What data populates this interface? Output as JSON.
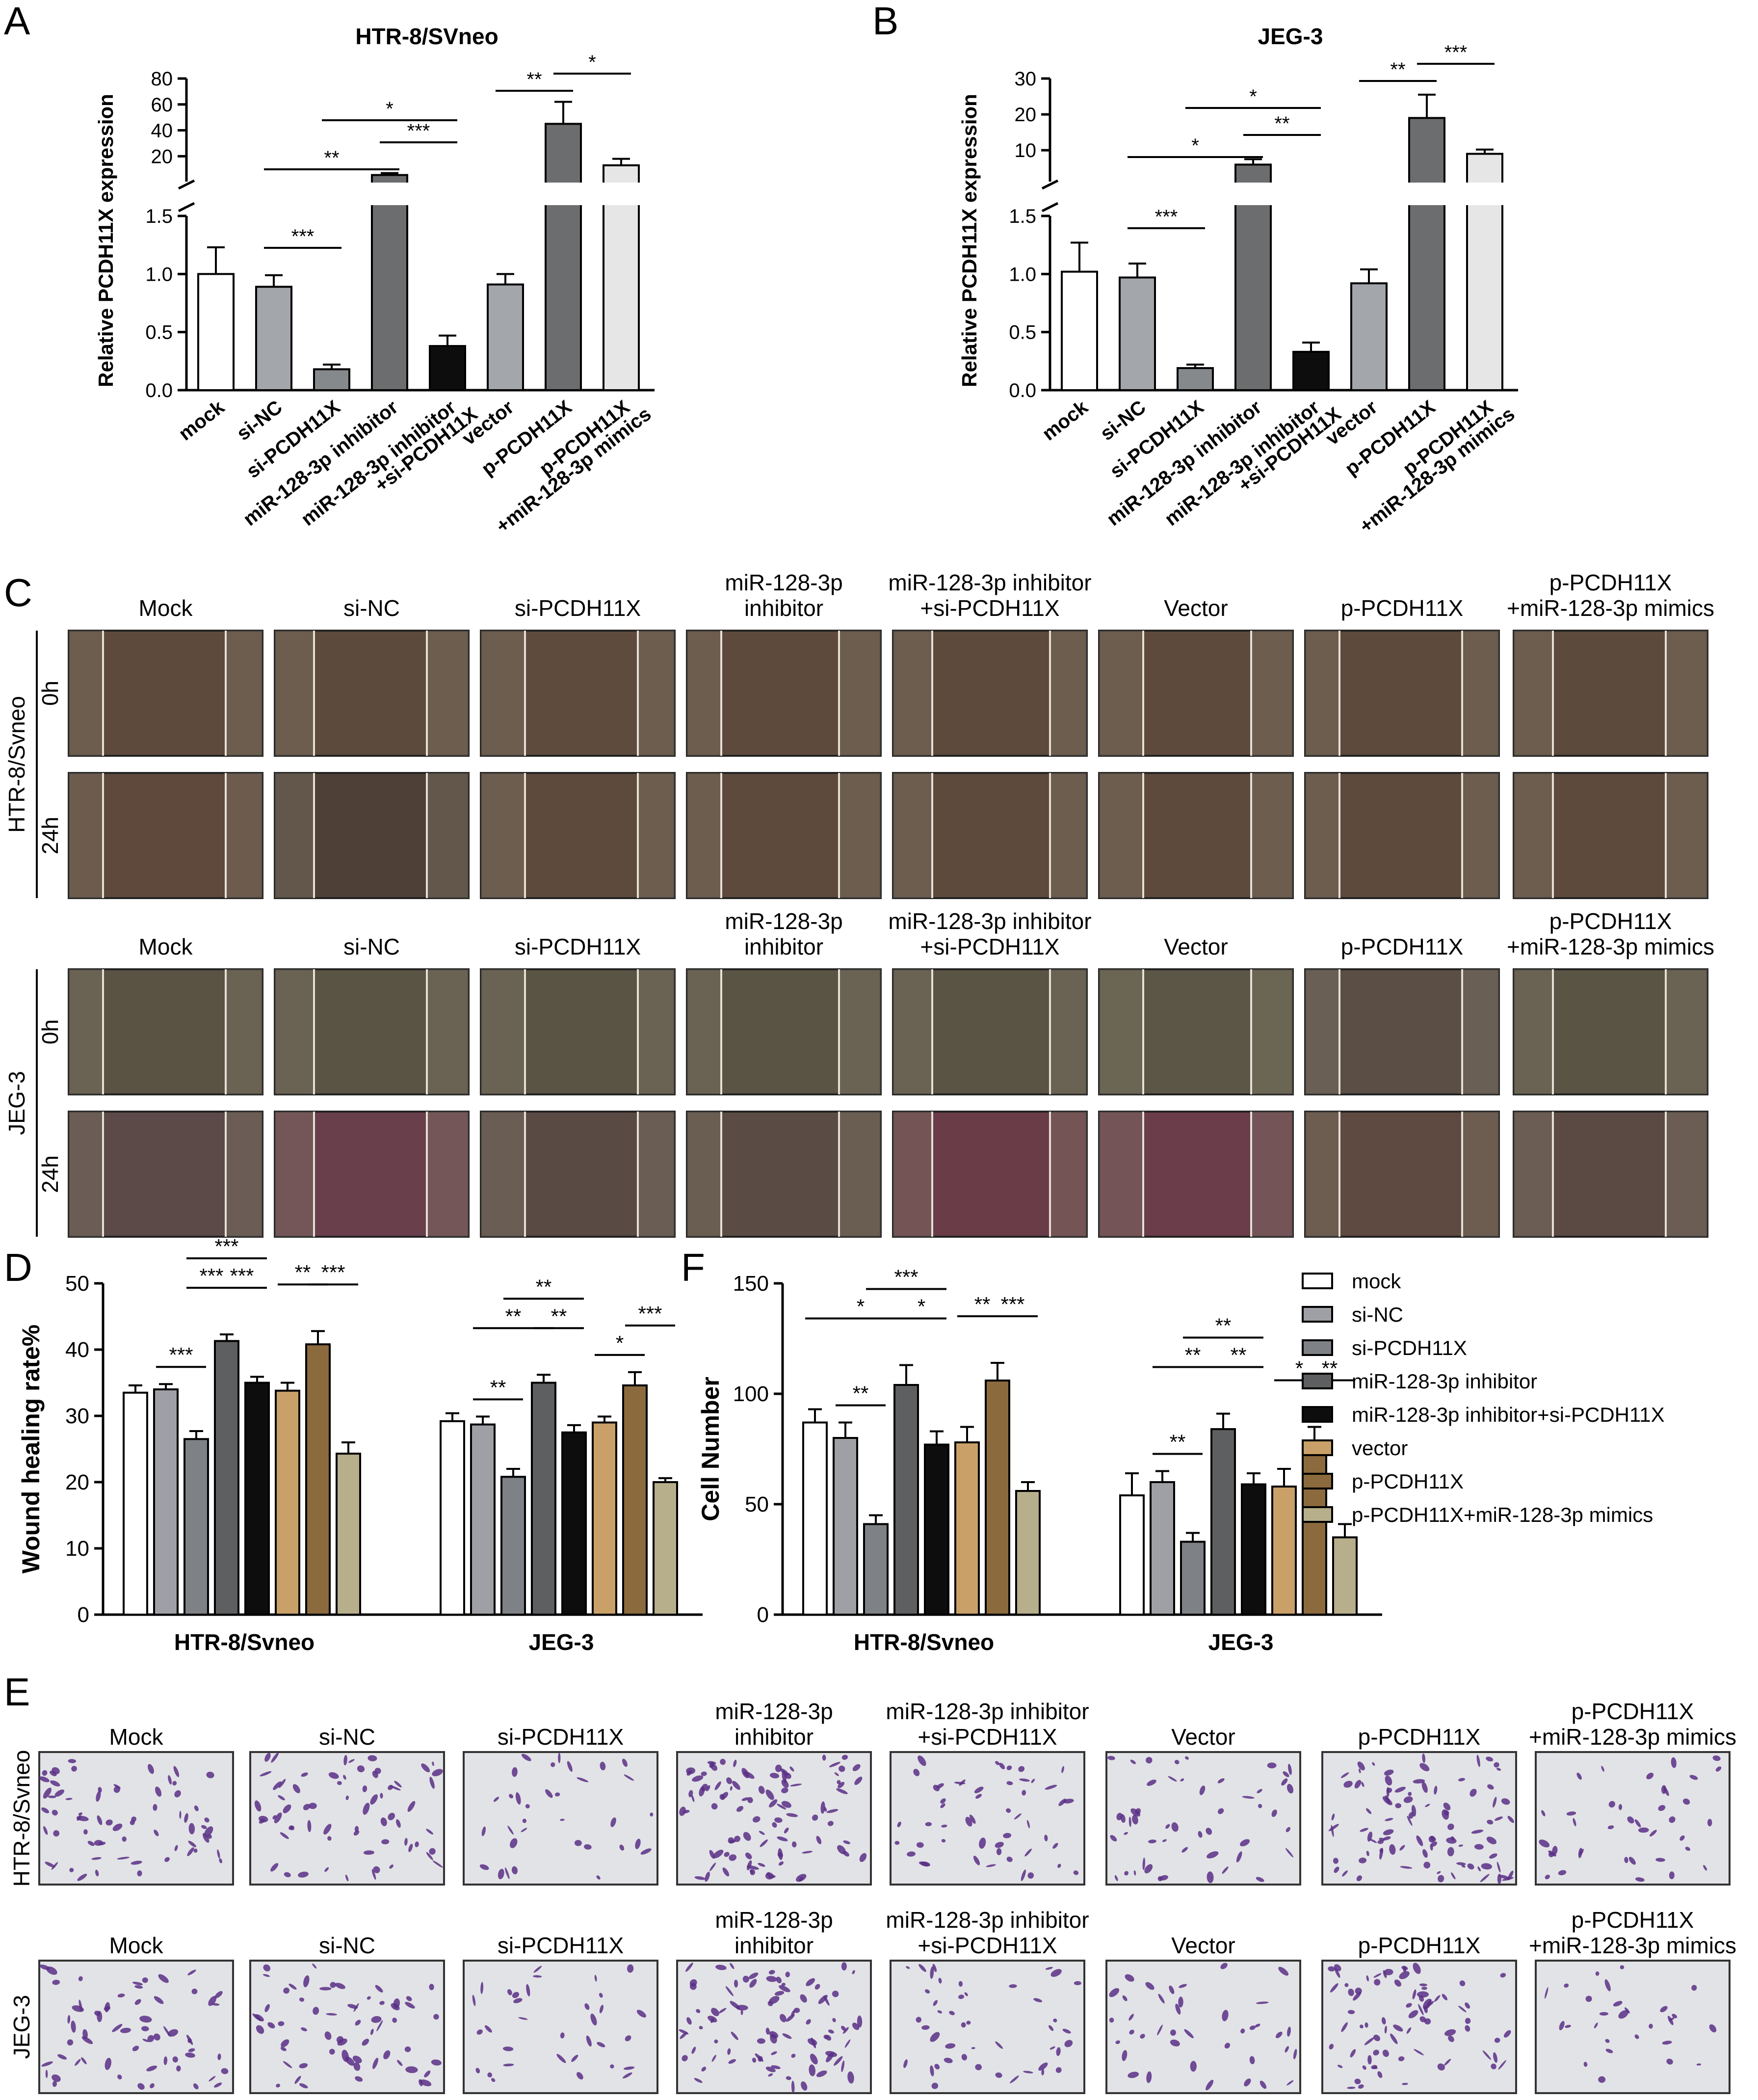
{
  "panel_letters": [
    "A",
    "B",
    "C",
    "D",
    "E",
    "F"
  ],
  "colors": {
    "mock": "#ffffff",
    "si-NC": "#9ea0a6",
    "si-PCDH11X": "#7e8185",
    "miR-128-3p inhibitor": "#5d5f60",
    "miR-128-3p inhibitor+si-PCDH11X": "#0d0d0d",
    "vector": "#c9a068",
    "p-PCDH11X": "#8b6a3d",
    "p-PCDH11X+miR-128-3p mimics": "#b7ae8b",
    "qpcr": [
      "#ffffff",
      "#a3a6ab",
      "#86898c",
      "#6b6d6e",
      "#0d0d0d",
      "#a3a6ab",
      "#6b6d6e",
      "#e6e6e6"
    ]
  },
  "chart_data": [
    {
      "id": "A",
      "type": "bar",
      "title": "HTR-8/SVneo",
      "ylabel": "Relative PCDH11X expression",
      "categories": [
        "mock",
        "si-NC",
        "si-PCDH11X",
        "miR-128-3p inhibitor",
        "miR-128-3p inhibitor\n+si-PCDH11X",
        "vector",
        "p-PCDH11X",
        "p-PCDH11X\n+miR-128-3p mimics"
      ],
      "values": [
        1.0,
        0.89,
        0.18,
        5.5,
        0.38,
        0.91,
        45,
        13
      ],
      "errors": [
        0.23,
        0.1,
        0.04,
        1.5,
        0.09,
        0.09,
        17,
        5
      ],
      "broken_axis": true,
      "ylim_lower": [
        0,
        1.5
      ],
      "ylim_upper": [
        1.5,
        80
      ],
      "yticks_lower": [
        "0.0",
        "0.5",
        "1.0",
        "1.5"
      ],
      "yticks_upper": [
        "20",
        "40",
        "60",
        "80"
      ],
      "significance": [
        {
          "from": 1,
          "to": 2,
          "label": "***"
        },
        {
          "from": 1,
          "to": 3,
          "label": "**"
        },
        {
          "from": 2,
          "to": 4,
          "label": "*"
        },
        {
          "from": 3,
          "to": 4,
          "label": "***"
        },
        {
          "from": 5,
          "to": 6,
          "label": "**"
        },
        {
          "from": 6,
          "to": 7,
          "label": "*"
        }
      ]
    },
    {
      "id": "B",
      "type": "bar",
      "title": "JEG-3",
      "ylabel": "Relative PCDH11X expression",
      "categories": [
        "mock",
        "si-NC",
        "si-PCDH11X",
        "miR-128-3p inhibitor",
        "miR-128-3p inhibitor\n+si-PCDH11X",
        "vector",
        "p-PCDH11X",
        "p-PCDH11X\n+miR-128-3p mimics"
      ],
      "values": [
        1.02,
        0.97,
        0.19,
        6.0,
        0.33,
        0.92,
        19,
        9
      ],
      "errors": [
        0.25,
        0.12,
        0.03,
        1.5,
        0.08,
        0.12,
        6.5,
        1.2
      ],
      "broken_axis": true,
      "ylim_lower": [
        0,
        1.5
      ],
      "ylim_upper": [
        1.5,
        30
      ],
      "yticks_lower": [
        "0.0",
        "0.5",
        "1.0",
        "1.5"
      ],
      "yticks_upper": [
        "10",
        "20",
        "30"
      ],
      "significance": [
        {
          "from": 1,
          "to": 2,
          "label": "***"
        },
        {
          "from": 1,
          "to": 3,
          "label": "*"
        },
        {
          "from": 2,
          "to": 4,
          "label": "*"
        },
        {
          "from": 3,
          "to": 4,
          "label": "**"
        },
        {
          "from": 5,
          "to": 6,
          "label": "**"
        },
        {
          "from": 6,
          "to": 7,
          "label": "***"
        }
      ]
    },
    {
      "id": "D",
      "type": "bar",
      "ylabel": "Wound healing rate%",
      "groups": [
        "HTR-8/Svneo",
        "JEG-3"
      ],
      "series_names": [
        "mock",
        "si-NC",
        "si-PCDH11X",
        "miR-128-3p inhibitor",
        "miR-128-3p inhibitor+si-PCDH11X",
        "vector",
        "p-PCDH11X",
        "p-PCDH11X+miR-128-3p mimics"
      ],
      "values": [
        [
          33.5,
          34,
          26.5,
          41.3,
          35,
          33.8,
          40.8,
          24.3
        ],
        [
          29.2,
          28.7,
          20.8,
          35,
          27.5,
          29,
          34.6,
          20
        ]
      ],
      "errors": [
        [
          1.1,
          0.8,
          1.2,
          1.0,
          0.9,
          1.2,
          2.0,
          1.7
        ],
        [
          1.2,
          1.2,
          1.2,
          1.2,
          1.1,
          0.9,
          2.0,
          0.6
        ]
      ],
      "ylim": [
        0,
        50
      ],
      "yticks": [
        "0",
        "10",
        "20",
        "30",
        "40",
        "50"
      ],
      "significance": [
        [
          {
            "from": 1,
            "to": 2,
            "label": "***",
            "level": 0
          },
          {
            "from": 2,
            "to": 3,
            "label": "***",
            "level": 1
          },
          {
            "from": 2,
            "to": 4,
            "label": "***",
            "level": 2
          },
          {
            "from": 3,
            "to": 4,
            "label": "***",
            "level": 1
          },
          {
            "from": 5,
            "to": 6,
            "label": "**",
            "level": 1
          },
          {
            "from": 6,
            "to": 7,
            "label": "***",
            "level": 1
          }
        ],
        [
          {
            "from": 1,
            "to": 2,
            "label": "**",
            "level": 0
          },
          {
            "from": 1,
            "to": 3,
            "label": "**",
            "level": 1
          },
          {
            "from": 2,
            "to": 4,
            "label": "**",
            "level": 2
          },
          {
            "from": 3,
            "to": 4,
            "label": "**",
            "level": 1
          },
          {
            "from": 5,
            "to": 6,
            "label": "*",
            "level": 0
          },
          {
            "from": 6,
            "to": 7,
            "label": "***",
            "level": 1
          }
        ]
      ]
    },
    {
      "id": "F",
      "type": "bar",
      "ylabel": "Cell Number",
      "groups": [
        "HTR-8/Svneo",
        "JEG-3"
      ],
      "series_names": [
        "mock",
        "si-NC",
        "si-PCDH11X",
        "miR-128-3p inhibitor",
        "miR-128-3p inhibitor+si-PCDH11X",
        "vector",
        "p-PCDH11X",
        "p-PCDH11X+miR-128-3p mimics"
      ],
      "values": [
        [
          87,
          80,
          41,
          104,
          77,
          78,
          106,
          56
        ],
        [
          54,
          60,
          33,
          84,
          59,
          58,
          78,
          35
        ]
      ],
      "errors": [
        [
          6,
          7,
          4,
          9,
          6,
          7,
          8,
          4
        ],
        [
          10,
          5,
          4,
          7,
          5,
          8,
          7,
          6
        ]
      ],
      "ylim": [
        0,
        150
      ],
      "yticks": [
        "0",
        "50",
        "100",
        "150"
      ],
      "significance": [
        [
          {
            "from": 1,
            "to": 2,
            "label": "**",
            "level": 0
          },
          {
            "from": 0,
            "to": 3,
            "label": "*",
            "level": 1
          },
          {
            "from": 2,
            "to": 4,
            "label": "***",
            "level": 2
          },
          {
            "from": 3,
            "to": 4,
            "label": "*",
            "level": 1
          },
          {
            "from": 5,
            "to": 6,
            "label": "**",
            "level": 1
          },
          {
            "from": 6,
            "to": 7,
            "label": "***",
            "level": 1
          }
        ],
        [
          {
            "from": 1,
            "to": 2,
            "label": "**",
            "level": 0
          },
          {
            "from": 1,
            "to": 3,
            "label": "**",
            "level": 1
          },
          {
            "from": 2,
            "to": 4,
            "label": "**",
            "level": 2
          },
          {
            "from": 3,
            "to": 4,
            "label": "**",
            "level": 1
          },
          {
            "from": 5,
            "to": 6,
            "label": "*",
            "level": 1
          },
          {
            "from": 6,
            "to": 7,
            "label": "**",
            "level": 1
          }
        ]
      ]
    }
  ],
  "legend": [
    "mock",
    "si-NC",
    "si-PCDH11X",
    "miR-128-3p inhibitor",
    "miR-128-3p inhibitor+si-PCDH11X",
    "vector",
    "p-PCDH11X",
    "p-PCDH11X+miR-128-3p mimics"
  ],
  "panel_C": {
    "col_labels": [
      [
        "Mock"
      ],
      [
        "si-NC"
      ],
      [
        "si-PCDH11X"
      ],
      [
        "miR-128-3p",
        "inhibitor"
      ],
      [
        "miR-128-3p inhibitor",
        "+si-PCDH11X"
      ],
      [
        "Vector"
      ],
      [
        "p-PCDH11X"
      ],
      [
        "p-PCDH11X",
        "+miR-128-3p mimics"
      ]
    ],
    "blocks": [
      {
        "cell_line": "HTR-8/Svneo",
        "rows": [
          "0h",
          "24h"
        ],
        "tints": [
          [
            "#5e4a3c",
            "#5c4a3d",
            "#5f4b3e",
            "#5e4a3d",
            "#5d4a3c",
            "#5e4a3c",
            "#5d4a3c",
            "#5c4a3c"
          ],
          [
            "#5e493c",
            "#4f4037",
            "#5e4a3c",
            "#5e4a3d",
            "#5d4a3c",
            "#5e4a3c",
            "#5d4a3c",
            "#5e4a3c"
          ]
        ]
      },
      {
        "cell_line": "JEG-3",
        "rows": [
          "0h",
          "24h"
        ],
        "tints": [
          [
            "#5a5243",
            "#5a5444",
            "#5a5444",
            "#5a5444",
            "#5a5444",
            "#5b5646",
            "#5a4e45",
            "#5a5444"
          ],
          [
            "#5b4a48",
            "#6a3f4c",
            "#5a4a44",
            "#5a4c44",
            "#6a3c48",
            "#6b3d4a",
            "#5e4a40",
            "#5b4a44"
          ]
        ]
      }
    ]
  },
  "panel_E": {
    "col_labels": [
      [
        "Mock"
      ],
      [
        "si-NC"
      ],
      [
        "si-PCDH11X"
      ],
      [
        "miR-128-3p",
        "inhibitor"
      ],
      [
        "miR-128-3p inhibitor",
        "+si-PCDH11X"
      ],
      [
        "Vector"
      ],
      [
        "p-PCDH11X"
      ],
      [
        "p-PCDH11X",
        "+miR-128-3p mimics"
      ]
    ],
    "row_labels": [
      "HTR-8/Svneo",
      "JEG-3"
    ],
    "density": [
      [
        0.6,
        0.6,
        0.3,
        0.9,
        0.45,
        0.45,
        0.85,
        0.35
      ],
      [
        0.55,
        0.55,
        0.3,
        0.8,
        0.4,
        0.35,
        0.7,
        0.25
      ]
    ]
  }
}
